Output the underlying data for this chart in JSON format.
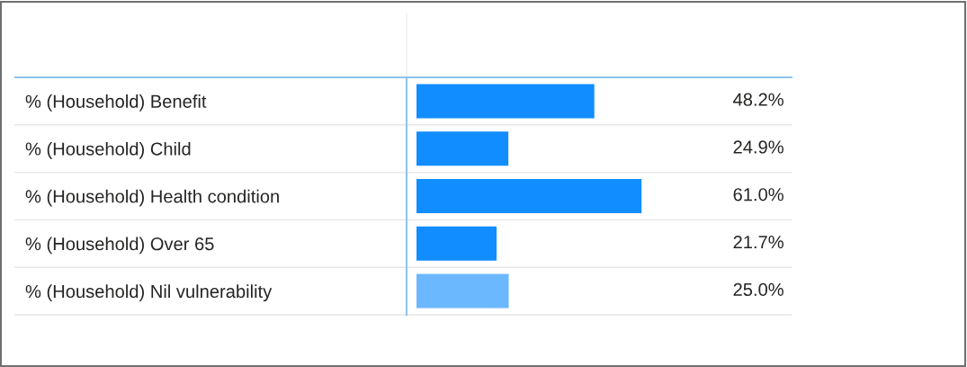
{
  "chart_data": {
    "type": "bar",
    "orientation": "horizontal",
    "categories": [
      "% (Household) Benefit",
      "% (Household) Child",
      "% (Household) Health condition",
      "% (Household) Over 65",
      "% (Household) Nil vulnerability"
    ],
    "values": [
      48.2,
      24.9,
      61.0,
      21.7,
      25.0
    ],
    "colors": [
      "#118dff",
      "#118dff",
      "#118dff",
      "#118dff",
      "#6cb8ff"
    ],
    "value_labels": [
      "48.2%",
      "24.9%",
      "61.0%",
      "21.7%",
      "25.0%"
    ]
  }
}
